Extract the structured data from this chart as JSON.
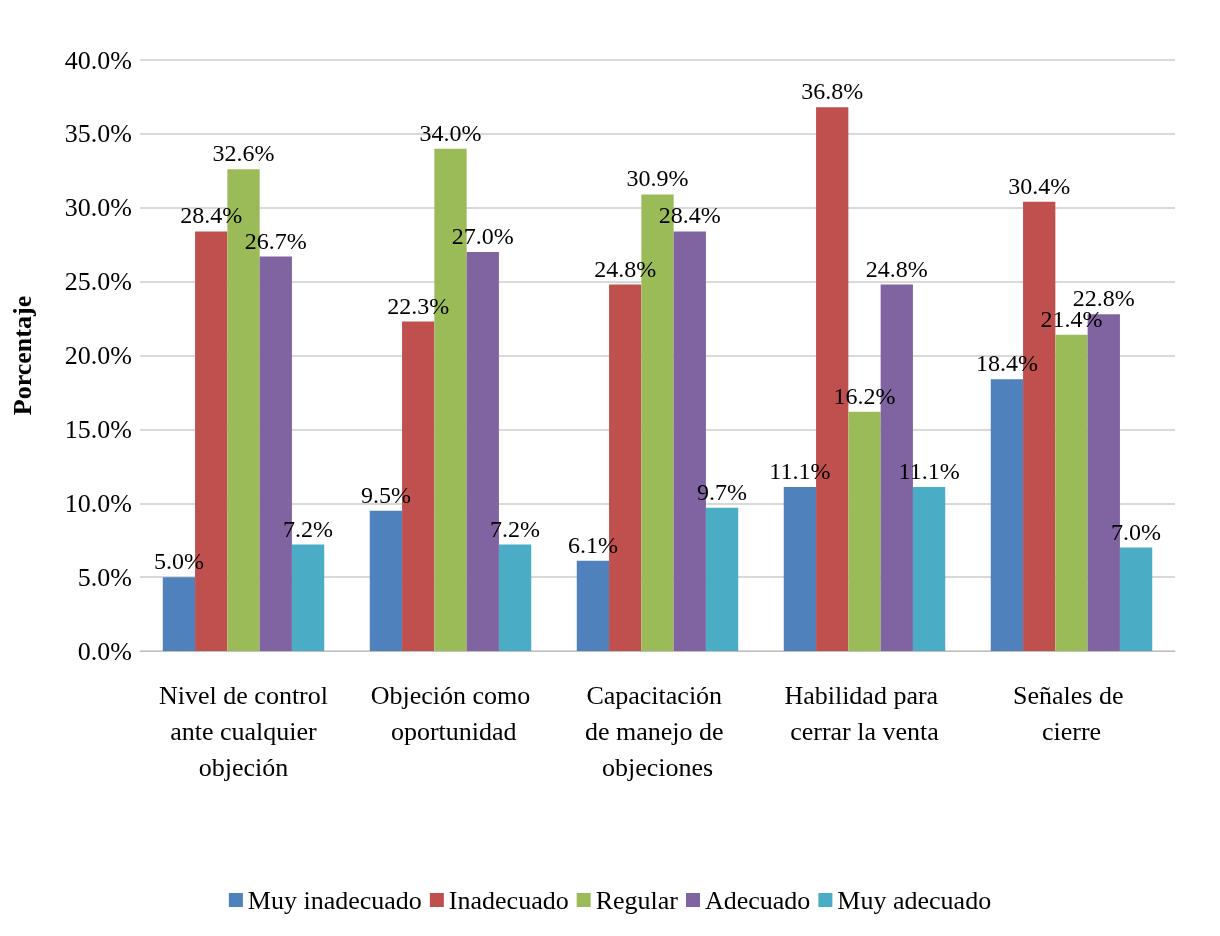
{
  "chart_data": {
    "type": "bar",
    "ylabel": "Porcentaje",
    "categories": [
      "Nivel de control ante cualquier objeción",
      "Objeción como oportunidad",
      "Capacitación de manejo de objeciones",
      "Habilidad para cerrar la venta",
      "Señales de cierre"
    ],
    "series": [
      {
        "name": "Muy inadecuado",
        "color": "#4f81bd",
        "values": [
          5.0,
          9.5,
          6.1,
          11.1,
          18.4
        ],
        "value_labels": [
          "5.0%",
          "9.5%",
          "6.1%",
          "11.1%",
          "18.4%"
        ]
      },
      {
        "name": "Inadecuado",
        "color": "#c0504d",
        "values": [
          28.4,
          22.3,
          24.8,
          36.8,
          30.4
        ],
        "value_labels": [
          "28.4%",
          "22.3%",
          "24.8%",
          "36.8%",
          "30.4%"
        ]
      },
      {
        "name": "Regular",
        "color": "#9bbb59",
        "values": [
          32.6,
          34.0,
          30.9,
          16.2,
          21.4
        ],
        "value_labels": [
          "32.6%",
          "34.0%",
          "30.9%",
          "16.2%",
          "21.4%"
        ]
      },
      {
        "name": "Adecuado",
        "color": "#8064a2",
        "values": [
          26.7,
          27.0,
          28.4,
          24.8,
          22.8
        ],
        "value_labels": [
          "26.7%",
          "27.0%",
          "28.4%",
          "24.8%",
          "22.8%"
        ]
      },
      {
        "name": "Muy adecuado",
        "color": "#4bacc6",
        "values": [
          7.2,
          7.2,
          9.7,
          11.1,
          7.0
        ],
        "value_labels": [
          "7.2%",
          "7.2%",
          "9.7%",
          "11.1%",
          "7.0%"
        ]
      }
    ],
    "ylim": [
      0,
      40
    ],
    "yticks": [
      {
        "value": 0,
        "label": "0.0%"
      },
      {
        "value": 5,
        "label": "5.0%"
      },
      {
        "value": 10,
        "label": "10.0%"
      },
      {
        "value": 15,
        "label": "15.0%"
      },
      {
        "value": 20,
        "label": "20.0%"
      },
      {
        "value": 25,
        "label": "25.0%"
      },
      {
        "value": 30,
        "label": "30.0%"
      },
      {
        "value": 35,
        "label": "35.0%"
      },
      {
        "value": 40,
        "label": "40.0%"
      }
    ],
    "grid": "y",
    "legend": "bottom"
  }
}
